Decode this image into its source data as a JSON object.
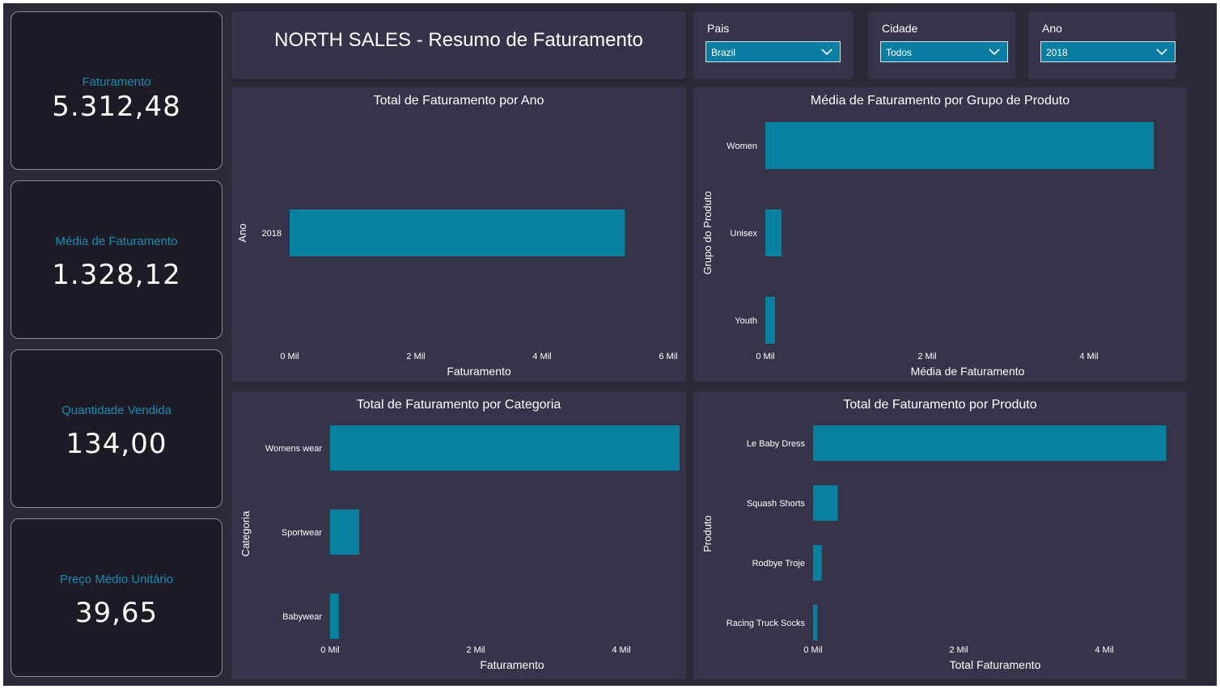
{
  "header": {
    "title": "NORTH SALES - Resumo de Faturamento"
  },
  "kpis": [
    {
      "label": "Faturamento",
      "value": "5.312,48"
    },
    {
      "label": "Média de Faturamento",
      "value": "1.328,12"
    },
    {
      "label": "Quantidade Vendida",
      "value": "134,00"
    },
    {
      "label": "Preço Médio Unitário",
      "value": "39,65"
    }
  ],
  "filters": [
    {
      "label": "Pais",
      "value": "Brazil"
    },
    {
      "label": "Cidade",
      "value": "Todos"
    },
    {
      "label": "Ano",
      "value": "2018"
    }
  ],
  "colors": {
    "bar": "#08809f",
    "kpi_label": "#1a8bb0",
    "panel": "#35344a"
  },
  "chart_data": [
    {
      "type": "bar",
      "orientation": "horizontal",
      "title": "Total de Faturamento por Ano",
      "xlabel": "Faturamento",
      "ylabel": "Ano",
      "categories": [
        "2018"
      ],
      "values": [
        5312.48
      ],
      "xlim": [
        0,
        6000
      ],
      "ticks": [
        0,
        2000,
        4000,
        6000
      ],
      "tick_labels": [
        "0 Mil",
        "2 Mil",
        "4 Mil",
        "6 Mil"
      ]
    },
    {
      "type": "bar",
      "orientation": "horizontal",
      "title": "Média de Faturamento por Grupo de Produto",
      "xlabel": "Média de Faturamento",
      "ylabel": "Grupo do Produto",
      "categories": [
        "Women",
        "Unisex",
        "Youth"
      ],
      "values": [
        4800,
        200,
        120
      ],
      "xlim": [
        0,
        5000
      ],
      "ticks": [
        0,
        2000,
        4000
      ],
      "tick_labels": [
        "0 Mil",
        "2 Mil",
        "4 Mil"
      ]
    },
    {
      "type": "bar",
      "orientation": "horizontal",
      "title": "Total de Faturamento por Categoria",
      "xlabel": "Faturamento",
      "ylabel": "Categoria",
      "categories": [
        "Womens wear",
        "Sportwear",
        "Babywear"
      ],
      "values": [
        4800,
        400,
        120
      ],
      "xlim": [
        0,
        5000
      ],
      "ticks": [
        0,
        2000,
        4000
      ],
      "tick_labels": [
        "0 Mil",
        "2 Mil",
        "4 Mil"
      ]
    },
    {
      "type": "bar",
      "orientation": "horizontal",
      "title": "Total de Faturamento por Produto",
      "xlabel": "Total Faturamento",
      "ylabel": "Produto",
      "categories": [
        "Le Baby Dress",
        "Squash Shorts",
        "Rodbye Troje",
        "Racing Truck Socks"
      ],
      "values": [
        4850,
        340,
        120,
        60
      ],
      "xlim": [
        0,
        5000
      ],
      "ticks": [
        0,
        2000,
        4000
      ],
      "tick_labels": [
        "0 Mil",
        "2 Mil",
        "4 Mil"
      ]
    }
  ]
}
